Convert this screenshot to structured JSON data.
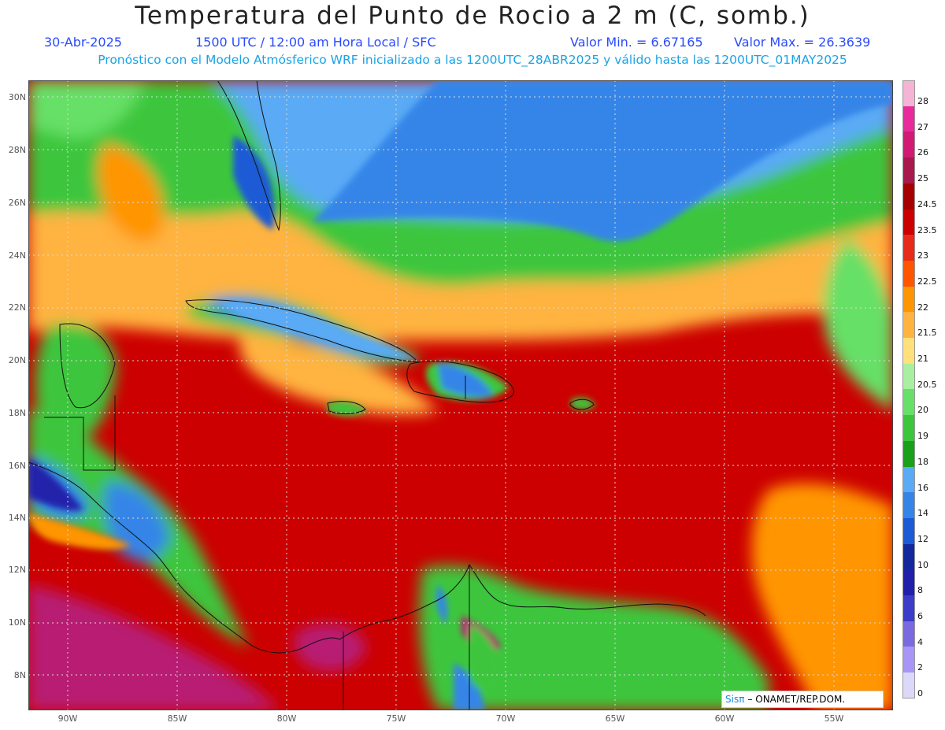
{
  "header": {
    "title": "Temperatura del Punto de Rocio a 2 m (C, somb.)",
    "date": "30-Abr-2025",
    "time_info": "1500 UTC / 12:00 am Hora Local / SFC",
    "min_label": "Valor Min. = 6.67165",
    "max_label": "Valor Max. = 26.3639",
    "model_info": "Pronóstico con el Modelo Atmósferico WRF inicializado a las 1200UTC_28ABR2025 y válido hasta las  1200UTC_01MAY2025"
  },
  "axes": {
    "lat_labels": [
      "30N",
      "28N",
      "26N",
      "24N",
      "22N",
      "20N",
      "18N",
      "16N",
      "14N",
      "12N",
      "10N",
      "8N"
    ],
    "lon_labels": [
      "90W",
      "85W",
      "80W",
      "75W",
      "70W",
      "65W",
      "60W",
      "55W"
    ]
  },
  "colorbar": {
    "labels": [
      "28",
      "27",
      "26",
      "25",
      "24.5",
      "23.5",
      "23",
      "22.5",
      "22",
      "21.5",
      "21",
      "20.5",
      "20",
      "19",
      "18",
      "16",
      "14",
      "12",
      "10",
      "8",
      "6",
      "4",
      "2",
      "0"
    ],
    "colors": [
      "#f5b3d6",
      "#e82a9b",
      "#d11a73",
      "#a81a4d",
      "#a60000",
      "#cc0000",
      "#e82a1a",
      "#ff5500",
      "#ff9500",
      "#ffb341",
      "#ffe07a",
      "#a8f0a0",
      "#66e066",
      "#3cc63c",
      "#1aa01a",
      "#5aaaf5",
      "#3585e8",
      "#1d5ad6",
      "#14289e",
      "#2020aa",
      "#3c3cc8",
      "#7a6ae0",
      "#a796f5",
      "#dcd8fa"
    ]
  },
  "credit": {
    "logo": "Sisπ",
    "text": "– ONAMET/REP.DOM."
  }
}
